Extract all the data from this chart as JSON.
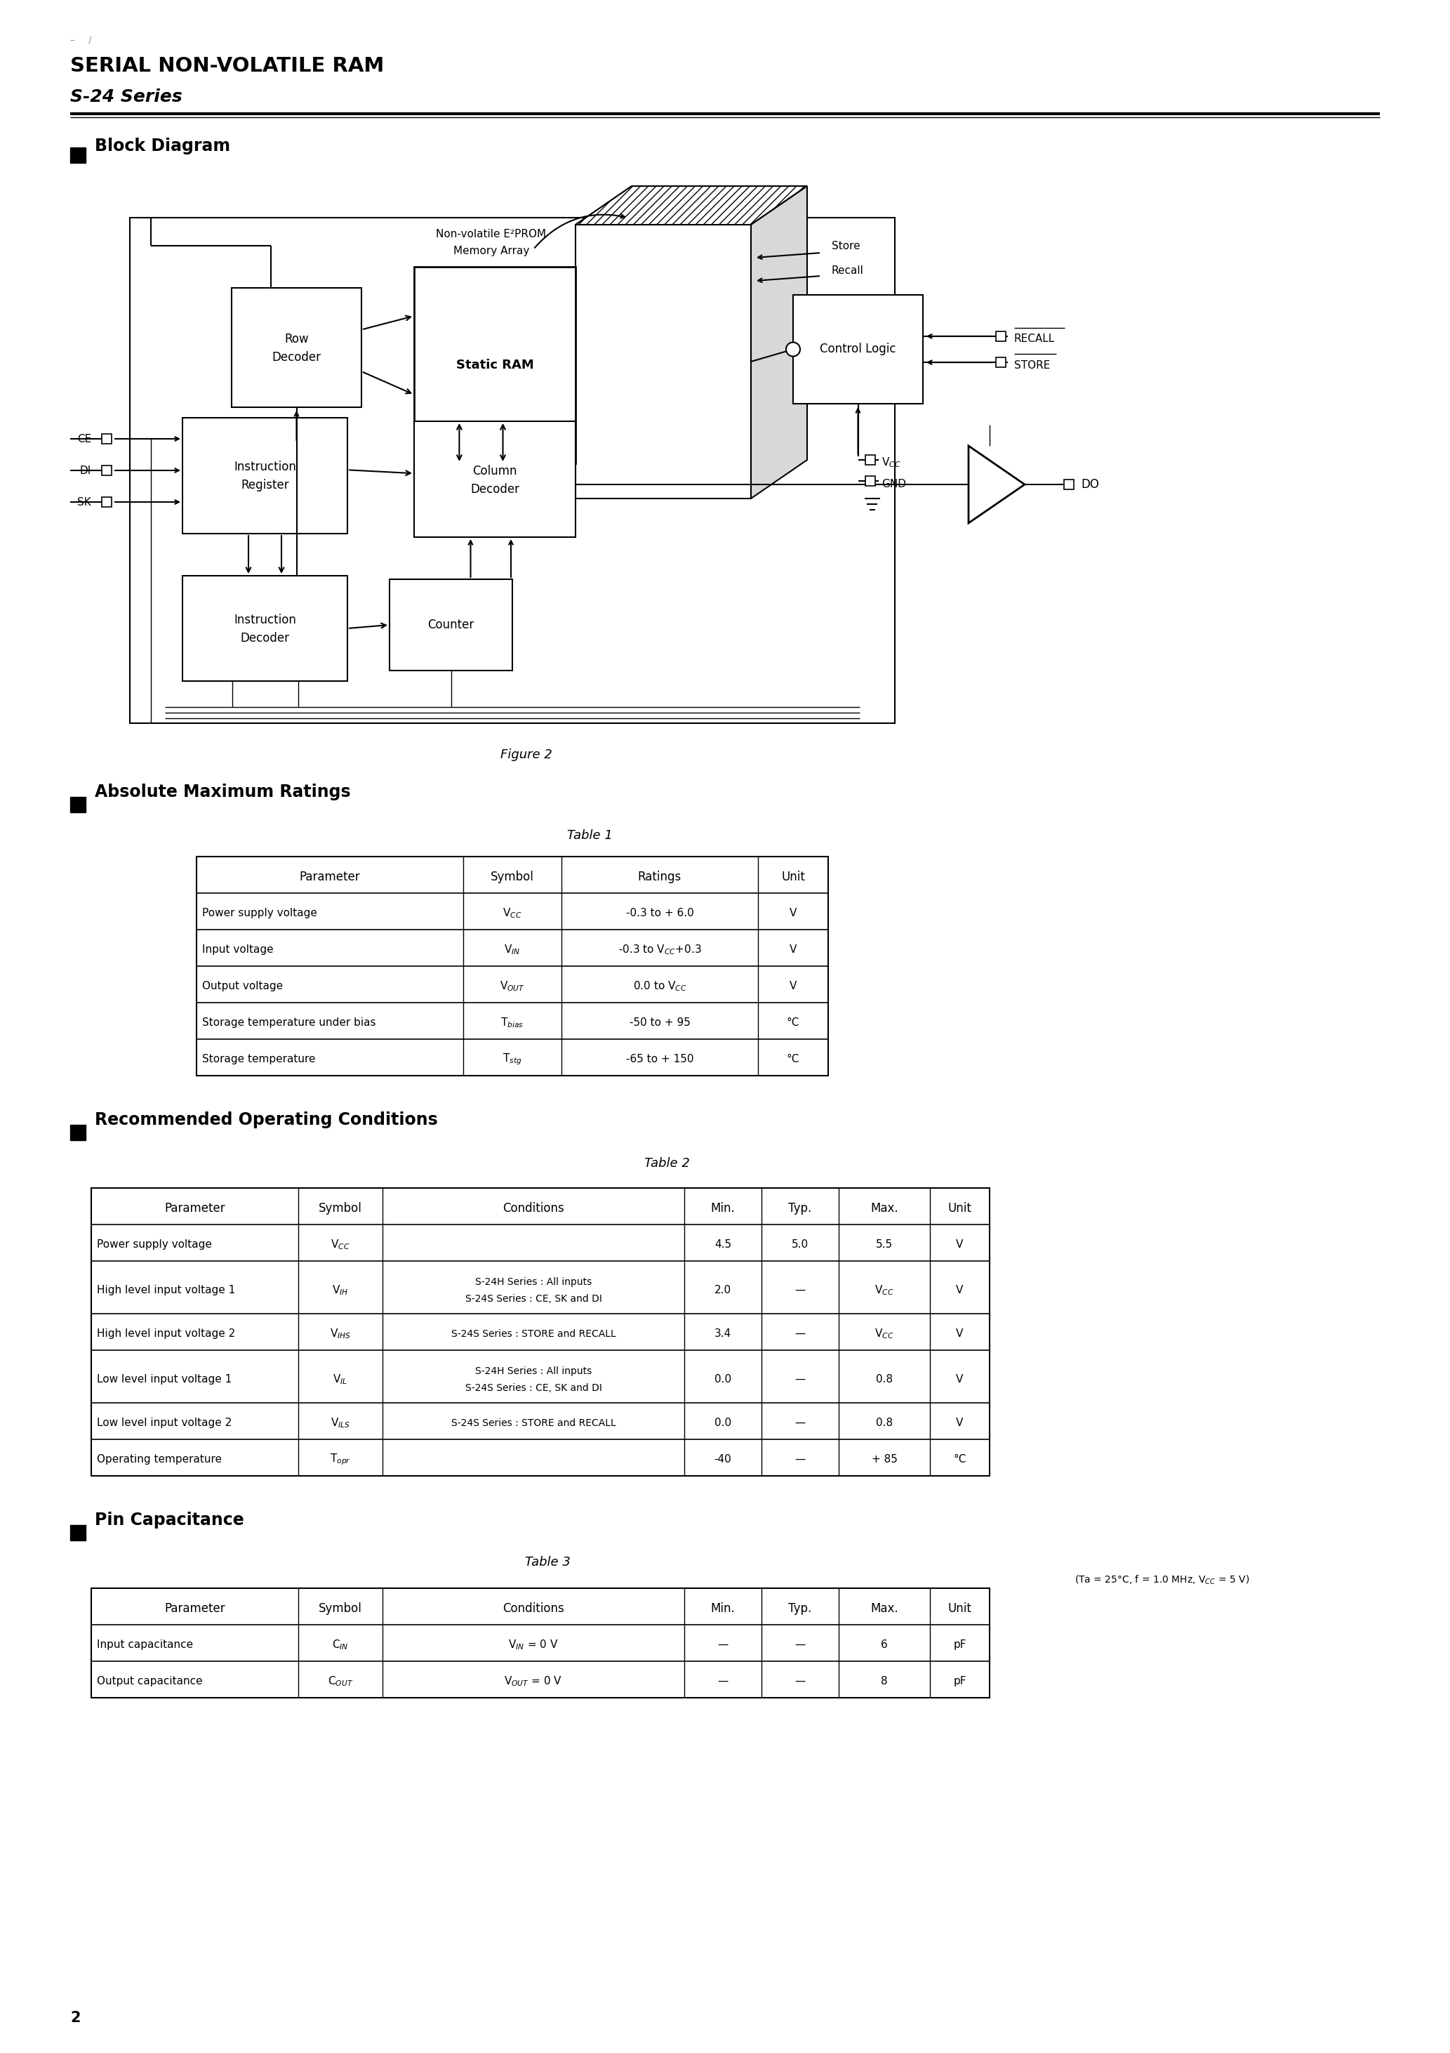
{
  "title_line1": "SERIAL NON-VOLATILE RAM",
  "title_line2": "S-24 Series",
  "page_number": "2",
  "section1": "Block Diagram",
  "figure_label": "Figure 2",
  "section2": "Absolute Maximum Ratings",
  "table1_title": "Table 1",
  "table1_headers": [
    "Parameter",
    "Symbol",
    "Ratings",
    "Unit"
  ],
  "table1_rows": [
    [
      "Power supply voltage",
      "V_CC",
      "-0.3 to + 6.0",
      "V"
    ],
    [
      "Input voltage",
      "V_IN",
      "-0.3 to V_CC + 0.3",
      "V"
    ],
    [
      "Output voltage",
      "V_OUT",
      "0.0 to V_CC",
      "V"
    ],
    [
      "Storage temperature under bias",
      "T_bias",
      "-50 to + 95",
      "°C"
    ],
    [
      "Storage temperature",
      "T_stg",
      "-65 to + 150",
      "°C"
    ]
  ],
  "section3": "Recommended Operating Conditions",
  "table2_title": "Table 2",
  "table2_headers": [
    "Parameter",
    "Symbol",
    "Conditions",
    "Min.",
    "Typ.",
    "Max.",
    "Unit"
  ],
  "table2_rows": [
    [
      "Power supply voltage",
      "V_CC",
      "",
      "4.5",
      "5.0",
      "5.5",
      "V"
    ],
    [
      "High level input voltage 1",
      "V_IH",
      "S-24H Series : All inputs\nS-24S Series : CE, SK and DI",
      "2.0",
      "—",
      "V_CC",
      "V"
    ],
    [
      "High level input voltage 2",
      "V_IHS",
      "S-24S Series : STORE and RECALL",
      "3.4",
      "—",
      "V_CC",
      "V"
    ],
    [
      "Low level input voltage 1",
      "V_IL",
      "S-24H Series : All inputs\nS-24S Series : CE, SK and DI",
      "0.0",
      "—",
      "0.8",
      "V"
    ],
    [
      "Low level input voltage 2",
      "V_ILS",
      "S-24S Series : STORE and RECALL",
      "0.0",
      "—",
      "0.8",
      "V"
    ],
    [
      "Operating temperature",
      "T_opr",
      "",
      "-40",
      "—",
      "+ 85",
      "°C"
    ]
  ],
  "section4": "Pin Capacitance",
  "table3_title": "Table 3",
  "table3_note": "(Ta = 25°C, f = 1.0 MHz, V_CC = 5 V)",
  "table3_headers": [
    "Parameter",
    "Symbol",
    "Conditions",
    "Min.",
    "Typ.",
    "Max.",
    "Unit"
  ],
  "table3_rows": [
    [
      "Input capacitance",
      "C_IN",
      "V_IN = 0 V",
      "—",
      "—",
      "6",
      "pF"
    ],
    [
      "Output capacitance",
      "C_OUT",
      "V_OUT = 0 V",
      "—",
      "—",
      "8",
      "pF"
    ]
  ],
  "bg_color": "#ffffff",
  "text_color": "#000000"
}
